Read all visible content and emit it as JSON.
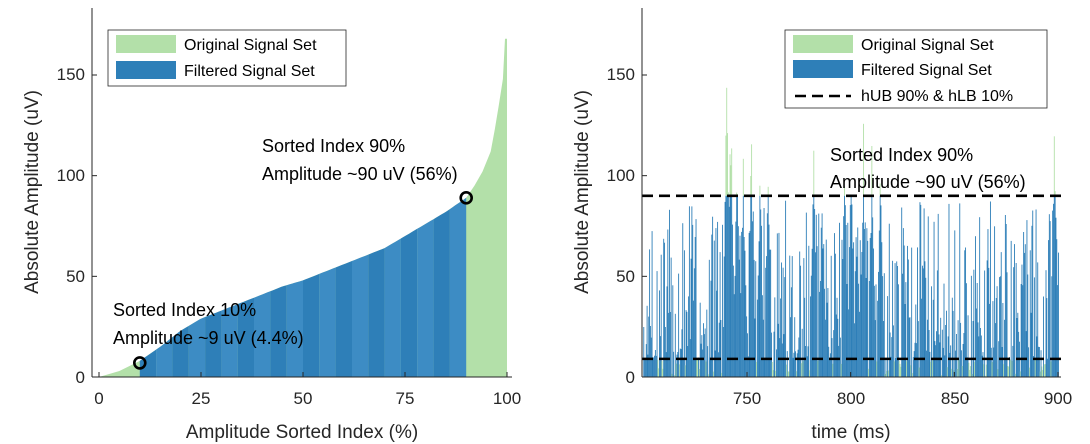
{
  "colors": {
    "original": "#b3e0a9",
    "filtered": "#2e7fb8",
    "filtered_alt": "#3d8cc4",
    "threshold": "#000000",
    "axis": "#262626"
  },
  "chart_data": [
    {
      "type": "area",
      "xlabel": "Amplitude Sorted Index (%)",
      "ylabel": "Absolute Amplitude (uV)",
      "xlim": [
        0,
        100
      ],
      "ylim": [
        0,
        170
      ],
      "xticks": [
        "0",
        "25",
        "50",
        "75",
        "100"
      ],
      "yticks": [
        "0",
        "50",
        "100",
        "150"
      ],
      "legend_position": "top-left",
      "series": [
        {
          "name": "Original Signal Set",
          "x": [
            0,
            5,
            10,
            15,
            20,
            25,
            30,
            35,
            40,
            45,
            50,
            55,
            60,
            65,
            70,
            75,
            80,
            85,
            90,
            92,
            94,
            96,
            97,
            98,
            99,
            99.5,
            100
          ],
          "y": [
            0,
            3,
            8,
            15,
            23,
            29,
            33,
            37,
            41,
            45,
            48,
            52,
            56,
            60,
            64,
            70,
            76,
            82,
            89,
            95,
            102,
            112,
            123,
            135,
            148,
            168,
            168
          ]
        },
        {
          "name": "Filtered Signal Set",
          "x_range": [
            10,
            90
          ]
        }
      ],
      "annotations": [
        {
          "line1": "Sorted Index 10%",
          "line2": "Amplitude ~9 uV (4.4%)",
          "x": 10,
          "y": 7
        },
        {
          "line1": "Sorted Index 90%",
          "line2": "Amplitude ~90 uV (56%)",
          "x": 90,
          "y": 89
        }
      ]
    },
    {
      "type": "bar",
      "xlabel": "time (ms)",
      "ylabel": "Absolute Amplitude (uV)",
      "xlim": [
        700,
        900
      ],
      "ylim": [
        0,
        170
      ],
      "xticks": [
        "750",
        "800",
        "850",
        "900"
      ],
      "yticks": [
        "0",
        "50",
        "100",
        "150"
      ],
      "legend_position": "top-right",
      "thresholds": {
        "name": "hUB 90% & hLB 10%",
        "upper": 90,
        "lower": 9
      },
      "series": [
        {
          "name": "Original Signal Set"
        },
        {
          "name": "Filtered Signal Set"
        }
      ],
      "peaks": [
        {
          "x": 740,
          "y": 170
        },
        {
          "x": 742,
          "y": 150
        },
        {
          "x": 745,
          "y": 125
        },
        {
          "x": 748,
          "y": 118
        },
        {
          "x": 752,
          "y": 130
        },
        {
          "x": 756,
          "y": 112
        },
        {
          "x": 760,
          "y": 100
        },
        {
          "x": 782,
          "y": 115
        },
        {
          "x": 786,
          "y": 105
        },
        {
          "x": 797,
          "y": 112
        },
        {
          "x": 800,
          "y": 105
        },
        {
          "x": 806,
          "y": 128
        },
        {
          "x": 810,
          "y": 118
        },
        {
          "x": 814,
          "y": 112
        },
        {
          "x": 898,
          "y": 138
        }
      ],
      "annotations": [
        {
          "line1": "Sorted Index 90%",
          "line2": "Amplitude ~90 uV (56%)"
        }
      ]
    }
  ]
}
